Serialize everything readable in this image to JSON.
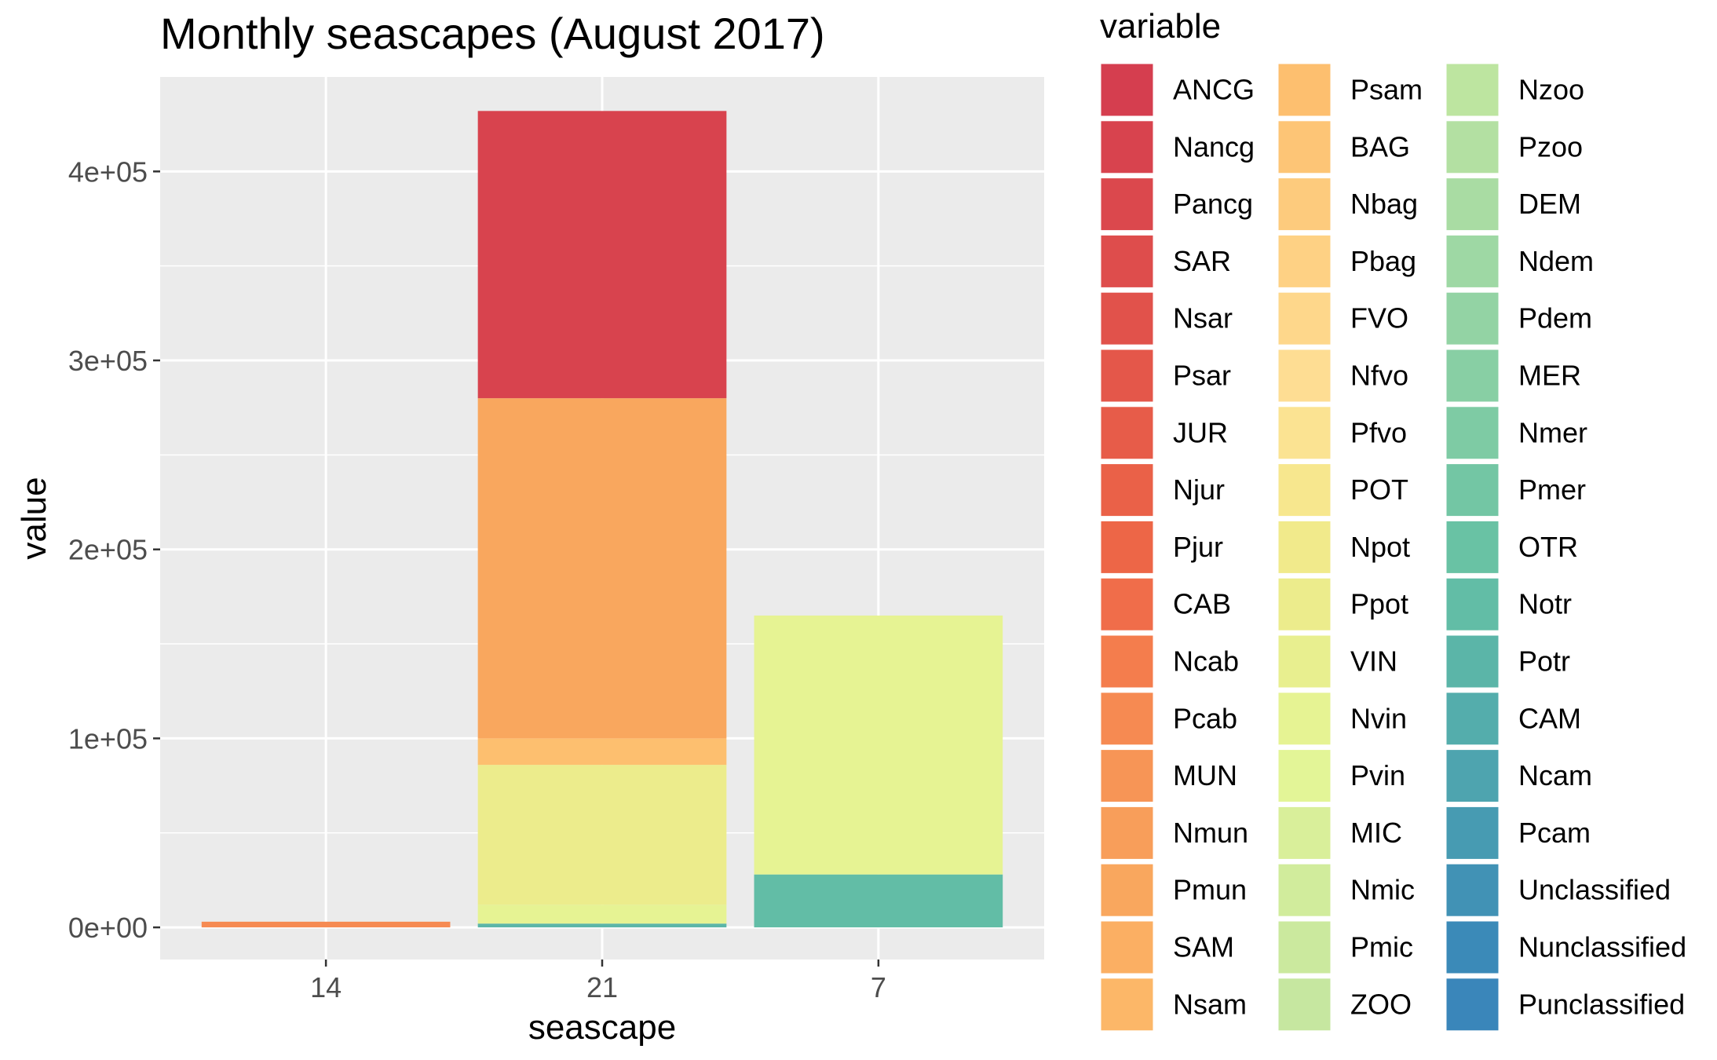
{
  "chart_data": {
    "type": "bar",
    "stacked": true,
    "title": "Monthly seascapes (August 2017)",
    "xlabel": "seascape",
    "ylabel": "value",
    "categories": [
      "14",
      "21",
      "7"
    ],
    "ylim": [
      -17000,
      450000
    ],
    "yticks": [
      0,
      100000,
      200000,
      300000,
      400000
    ],
    "ytick_labels": [
      "0e+00",
      "1e+05",
      "2e+05",
      "3e+05",
      "4e+05"
    ],
    "grid": true,
    "legend": {
      "title": "variable",
      "position": "right",
      "columns": 3,
      "entries": [
        {
          "name": "ANCG",
          "color": "#d53e4f"
        },
        {
          "name": "Nancg",
          "color": "#d8434e"
        },
        {
          "name": "Pancg",
          "color": "#db484d"
        },
        {
          "name": "SAR",
          "color": "#de4d4c"
        },
        {
          "name": "Nsar",
          "color": "#e1524b"
        },
        {
          "name": "Psar",
          "color": "#e4574a"
        },
        {
          "name": "JUR",
          "color": "#e75c49"
        },
        {
          "name": "Njur",
          "color": "#ea6148"
        },
        {
          "name": "Pjur",
          "color": "#ed6647"
        },
        {
          "name": "CAB",
          "color": "#f06d4a"
        },
        {
          "name": "Ncab",
          "color": "#f47d4d"
        },
        {
          "name": "Pcab",
          "color": "#f68a52"
        },
        {
          "name": "MUN",
          "color": "#f79556"
        },
        {
          "name": "Nmun",
          "color": "#f89e5a"
        },
        {
          "name": "Pmun",
          "color": "#f9a75e"
        },
        {
          "name": "SAM",
          "color": "#fbaf63"
        },
        {
          "name": "Nsam",
          "color": "#fcb768"
        },
        {
          "name": "Psam",
          "color": "#fdbf6f"
        },
        {
          "name": "BAG",
          "color": "#fdc576"
        },
        {
          "name": "Nbag",
          "color": "#fdcb7d"
        },
        {
          "name": "Pbag",
          "color": "#fed184"
        },
        {
          "name": "FVO",
          "color": "#fed78b"
        },
        {
          "name": "Nfvo",
          "color": "#fedd93"
        },
        {
          "name": "Pfvo",
          "color": "#fbe392"
        },
        {
          "name": "POT",
          "color": "#f7e78e"
        },
        {
          "name": "Npot",
          "color": "#f1ea8b"
        },
        {
          "name": "Ppot",
          "color": "#ecec8c"
        },
        {
          "name": "VIN",
          "color": "#e8ef8f"
        },
        {
          "name": "Nvin",
          "color": "#e6f393"
        },
        {
          "name": "Pvin",
          "color": "#e3f597"
        },
        {
          "name": "MIC",
          "color": "#d9ef9a"
        },
        {
          "name": "Nmic",
          "color": "#d1ec9c"
        },
        {
          "name": "Pmic",
          "color": "#cbe99e"
        },
        {
          "name": "ZOO",
          "color": "#c6e7a0"
        },
        {
          "name": "Nzoo",
          "color": "#bde5a0"
        },
        {
          "name": "Pzoo",
          "color": "#b3e0a2"
        },
        {
          "name": "DEM",
          "color": "#a9dca3"
        },
        {
          "name": "Ndem",
          "color": "#9ed8a4"
        },
        {
          "name": "Pdem",
          "color": "#93d3a4"
        },
        {
          "name": "MER",
          "color": "#88cfa4"
        },
        {
          "name": "Nmer",
          "color": "#7ecba4"
        },
        {
          "name": "Pmer",
          "color": "#73c6a4"
        },
        {
          "name": "OTR",
          "color": "#69c2a4"
        },
        {
          "name": "Notr",
          "color": "#62bda6"
        },
        {
          "name": "Potr",
          "color": "#5bb5a8"
        },
        {
          "name": "CAM",
          "color": "#54adac"
        },
        {
          "name": "Ncam",
          "color": "#4ea4af"
        },
        {
          "name": "Pcam",
          "color": "#479bb2"
        },
        {
          "name": "Unclassified",
          "color": "#4192b5"
        },
        {
          "name": "Nunclassified",
          "color": "#3b8ab8"
        },
        {
          "name": "Punclassified",
          "color": "#3a86ba"
        }
      ]
    },
    "bars": [
      {
        "category": "14",
        "segments": [
          {
            "variable": "Pcab",
            "value": 3000
          }
        ]
      },
      {
        "category": "21",
        "segments": [
          {
            "variable": "Potr",
            "value": 2000
          },
          {
            "variable": "Nvin",
            "value": 10000
          },
          {
            "variable": "Ppot",
            "value": 74000
          },
          {
            "variable": "Psam",
            "value": 14000
          },
          {
            "variable": "Pmun",
            "value": 180000
          },
          {
            "variable": "Nancg",
            "value": 152000
          }
        ]
      },
      {
        "category": "7",
        "segments": [
          {
            "variable": "Notr",
            "value": 28000
          },
          {
            "variable": "Nvin",
            "value": 137000
          }
        ]
      }
    ]
  }
}
